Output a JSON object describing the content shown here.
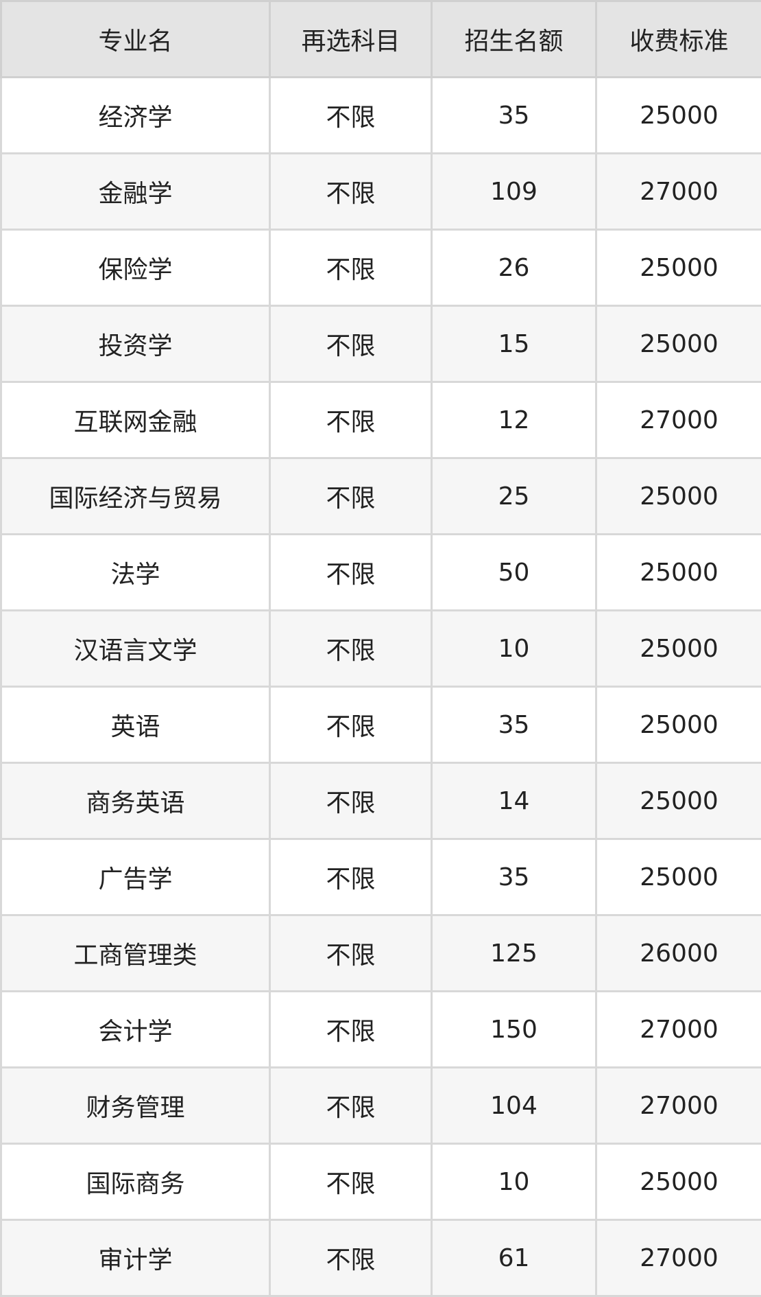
{
  "table": {
    "headers": [
      "专业名",
      "再选科目",
      "招生名额",
      "收费标准"
    ],
    "rows": [
      [
        "经济学",
        "不限",
        "35",
        "25000"
      ],
      [
        "金融学",
        "不限",
        "109",
        "27000"
      ],
      [
        "保险学",
        "不限",
        "26",
        "25000"
      ],
      [
        "投资学",
        "不限",
        "15",
        "25000"
      ],
      [
        "互联网金融",
        "不限",
        "12",
        "27000"
      ],
      [
        "国际经济与贸易",
        "不限",
        "25",
        "25000"
      ],
      [
        "法学",
        "不限",
        "50",
        "25000"
      ],
      [
        "汉语言文学",
        "不限",
        "10",
        "25000"
      ],
      [
        "英语",
        "不限",
        "35",
        "25000"
      ],
      [
        "商务英语",
        "不限",
        "14",
        "25000"
      ],
      [
        "广告学",
        "不限",
        "35",
        "25000"
      ],
      [
        "工商管理类",
        "不限",
        "125",
        "26000"
      ],
      [
        "会计学",
        "不限",
        "150",
        "27000"
      ],
      [
        "财务管理",
        "不限",
        "104",
        "27000"
      ],
      [
        "国际商务",
        "不限",
        "10",
        "25000"
      ],
      [
        "审计学",
        "不限",
        "61",
        "27000"
      ]
    ]
  }
}
